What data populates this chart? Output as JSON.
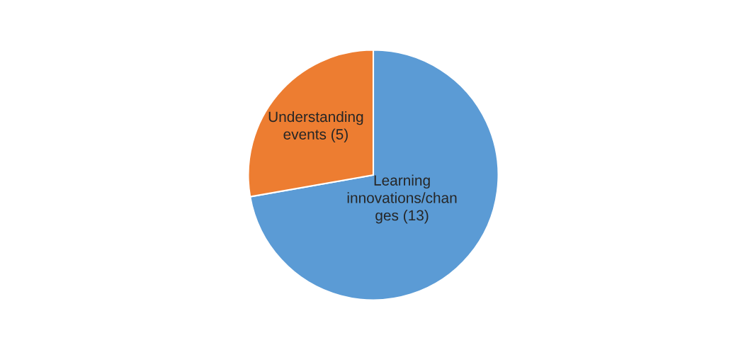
{
  "chart_data": {
    "type": "pie",
    "categories": [
      "Learning\ninnovations/chan\nges (13)",
      "Understanding\nevents (5)"
    ],
    "values": [
      13,
      5
    ],
    "colors": [
      "#5b9bd5",
      "#ed7d31"
    ],
    "legend": false
  }
}
